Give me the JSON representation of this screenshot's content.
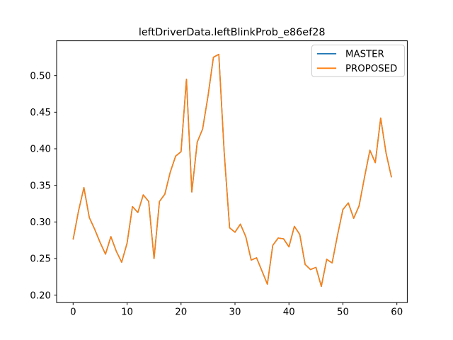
{
  "figure": {
    "background_color": "#ffffff",
    "axes_edge_color": "#000000"
  },
  "legend": {
    "position": "upper right",
    "items": [
      {
        "label": "MASTER",
        "color": "#1f77b4"
      },
      {
        "label": "PROPOSED",
        "color": "#ff7f0e"
      }
    ]
  },
  "chart_data": {
    "type": "line",
    "title": "leftDriverData.leftBlinkProb_e86ef28",
    "xlabel": "",
    "ylabel": "",
    "grid": false,
    "legend_position": "upper right",
    "xlim": [
      -2.95,
      61.95
    ],
    "ylim": [
      0.196,
      0.545
    ],
    "x_ticks": [
      0,
      10,
      20,
      30,
      40,
      50,
      60
    ],
    "y_ticks": [
      0.2,
      0.25,
      0.3,
      0.35,
      0.4,
      0.45,
      0.5
    ],
    "x": [
      0,
      1,
      2,
      3,
      4,
      5,
      6,
      7,
      8,
      9,
      10,
      11,
      12,
      13,
      14,
      15,
      16,
      17,
      18,
      19,
      20,
      21,
      22,
      23,
      24,
      25,
      26,
      27,
      28,
      29,
      30,
      31,
      32,
      33,
      34,
      35,
      36,
      37,
      38,
      39,
      40,
      41,
      42,
      43,
      44,
      45,
      46,
      47,
      48,
      49,
      50,
      51,
      52,
      53,
      54,
      55,
      56,
      57,
      58,
      59
    ],
    "series": [
      {
        "name": "MASTER",
        "color": "#1f77b4",
        "hidden_behind": "PROPOSED",
        "values": [
          0.276,
          0.315,
          0.347,
          0.306,
          0.29,
          0.272,
          0.256,
          0.28,
          0.26,
          0.245,
          0.271,
          0.321,
          0.313,
          0.337,
          0.328,
          0.25,
          0.328,
          0.338,
          0.368,
          0.39,
          0.396,
          0.495,
          0.341,
          0.409,
          0.427,
          0.472,
          0.525,
          0.529,
          0.395,
          0.292,
          0.286,
          0.297,
          0.28,
          0.248,
          0.251,
          0.233,
          0.215,
          0.268,
          0.278,
          0.277,
          0.266,
          0.294,
          0.283,
          0.242,
          0.235,
          0.238,
          0.212,
          0.249,
          0.244,
          0.282,
          0.317,
          0.326,
          0.305,
          0.322,
          0.361,
          0.398,
          0.381,
          0.442,
          0.394,
          0.361
        ]
      },
      {
        "name": "PROPOSED",
        "color": "#ff7f0e",
        "values": [
          0.276,
          0.315,
          0.347,
          0.306,
          0.29,
          0.272,
          0.256,
          0.28,
          0.26,
          0.245,
          0.271,
          0.321,
          0.313,
          0.337,
          0.328,
          0.25,
          0.328,
          0.338,
          0.368,
          0.39,
          0.396,
          0.495,
          0.341,
          0.409,
          0.427,
          0.472,
          0.525,
          0.529,
          0.395,
          0.292,
          0.286,
          0.297,
          0.28,
          0.248,
          0.251,
          0.233,
          0.215,
          0.268,
          0.278,
          0.277,
          0.266,
          0.294,
          0.283,
          0.242,
          0.235,
          0.238,
          0.212,
          0.249,
          0.244,
          0.282,
          0.317,
          0.326,
          0.305,
          0.322,
          0.361,
          0.398,
          0.381,
          0.442,
          0.394,
          0.361
        ]
      }
    ]
  }
}
